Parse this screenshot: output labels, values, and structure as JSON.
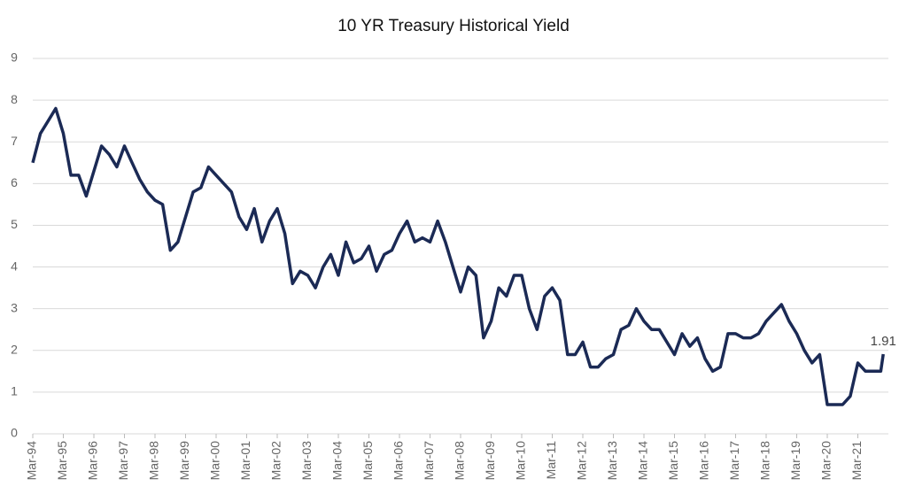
{
  "chart_data": {
    "type": "line",
    "title": "10 YR Treasury Historical Yield",
    "x": [
      "Mar-94",
      "Jun-94",
      "Sep-94",
      "Dec-94",
      "Mar-95",
      "Jun-95",
      "Sep-95",
      "Dec-95",
      "Mar-96",
      "Jun-96",
      "Sep-96",
      "Dec-96",
      "Mar-97",
      "Jun-97",
      "Sep-97",
      "Dec-97",
      "Mar-98",
      "Jun-98",
      "Sep-98",
      "Dec-98",
      "Mar-99",
      "Jun-99",
      "Sep-99",
      "Dec-99",
      "Mar-00",
      "Jun-00",
      "Sep-00",
      "Dec-00",
      "Mar-01",
      "Jun-01",
      "Sep-01",
      "Dec-01",
      "Mar-02",
      "Jun-02",
      "Sep-02",
      "Dec-02",
      "Mar-03",
      "Jun-03",
      "Sep-03",
      "Dec-03",
      "Mar-04",
      "Jun-04",
      "Sep-04",
      "Dec-04",
      "Mar-05",
      "Jun-05",
      "Sep-05",
      "Dec-05",
      "Mar-06",
      "Jun-06",
      "Sep-06",
      "Dec-06",
      "Mar-07",
      "Jun-07",
      "Sep-07",
      "Dec-07",
      "Mar-08",
      "Jun-08",
      "Sep-08",
      "Dec-08",
      "Mar-09",
      "Jun-09",
      "Sep-09",
      "Dec-09",
      "Mar-10",
      "Jun-10",
      "Sep-10",
      "Dec-10",
      "Mar-11",
      "Jun-11",
      "Sep-11",
      "Dec-11",
      "Mar-12",
      "Jun-12",
      "Sep-12",
      "Dec-12",
      "Mar-13",
      "Jun-13",
      "Sep-13",
      "Dec-13",
      "Mar-14",
      "Jun-14",
      "Sep-14",
      "Dec-14",
      "Mar-15",
      "Jun-15",
      "Sep-15",
      "Dec-15",
      "Mar-16",
      "Jun-16",
      "Sep-16",
      "Dec-16",
      "Mar-17",
      "Jun-17",
      "Sep-17",
      "Dec-17",
      "Mar-18",
      "Jun-18",
      "Sep-18",
      "Dec-18",
      "Mar-19",
      "Jun-19",
      "Sep-19",
      "Dec-19",
      "Mar-20",
      "Jun-20",
      "Sep-20",
      "Dec-20",
      "Mar-21",
      "Jun-21",
      "Sep-21",
      "Dec-21",
      "Jan-22"
    ],
    "series": [
      {
        "color": "#1b2a55",
        "values": [
          6.5,
          7.2,
          7.5,
          7.8,
          7.2,
          6.2,
          6.2,
          5.7,
          6.3,
          6.9,
          6.7,
          6.4,
          6.9,
          6.5,
          6.1,
          5.8,
          5.6,
          5.5,
          4.4,
          4.6,
          5.2,
          5.8,
          5.9,
          6.4,
          6.2,
          6.0,
          5.8,
          5.2,
          4.9,
          5.4,
          4.6,
          5.1,
          5.4,
          4.8,
          3.6,
          3.9,
          3.8,
          3.5,
          4.0,
          4.3,
          3.8,
          4.6,
          4.1,
          4.2,
          4.5,
          3.9,
          4.3,
          4.4,
          4.8,
          5.1,
          4.6,
          4.7,
          4.6,
          5.1,
          4.6,
          4.0,
          3.4,
          4.0,
          3.8,
          2.3,
          2.7,
          3.5,
          3.3,
          3.8,
          3.8,
          3.0,
          2.5,
          3.3,
          3.5,
          3.2,
          1.9,
          1.9,
          2.2,
          1.6,
          1.6,
          1.8,
          1.9,
          2.5,
          2.6,
          3.0,
          2.7,
          2.5,
          2.5,
          2.2,
          1.9,
          2.4,
          2.1,
          2.3,
          1.8,
          1.5,
          1.6,
          2.4,
          2.4,
          2.3,
          2.3,
          2.4,
          2.7,
          2.9,
          3.1,
          2.7,
          2.4,
          2.0,
          1.7,
          1.9,
          0.7,
          0.7,
          0.7,
          0.9,
          1.7,
          1.5,
          1.5,
          1.5,
          1.91
        ]
      }
    ],
    "ylim": [
      0,
      9
    ],
    "yticks": [
      0,
      1,
      2,
      3,
      4,
      5,
      6,
      7,
      8,
      9
    ],
    "grid": true
  }
}
